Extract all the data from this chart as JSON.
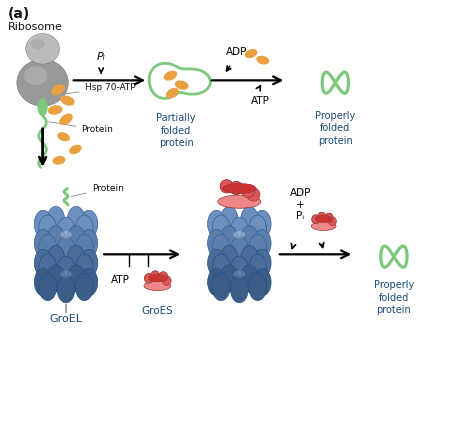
{
  "title": "(a)",
  "background_color": "#ffffff",
  "labels": {
    "ribosome": "Ribosome",
    "hsp70": "Hsp 70-ATP",
    "protein_top": "Protein",
    "protein_bottom": "Protein",
    "partially_folded": "Partially\nfolded\nprotein",
    "properly_folded_top": "Properly\nfolded\nprotein",
    "properly_folded_bottom": "Properly\nfolded\nprotein",
    "Pi_top": "Pᵢ",
    "adp_top1": "ADP",
    "atp_top": "ATP",
    "adp_bottom": "ADP\n+\nPᵢ",
    "GroEL": "GroEL",
    "GroES": "GroES",
    "atp_bottom": "ATP"
  },
  "colors": {
    "ribosome_gray": "#999999",
    "ribosome_light": "#bbbbbb",
    "ribosome_dark": "#777777",
    "green_protein": "#7dc87d",
    "green_light": "#a8d8a8",
    "orange_atp": "#e8a040",
    "blue_groel": "#6b8fbf",
    "blue_groel_mid": "#5a7eae",
    "blue_groel_dark": "#4a6d9a",
    "blue_groel_darkest": "#3a5d8a",
    "red_groes": "#cc3333",
    "red_groes_mid": "#dd5555",
    "red_groes_light": "#ee8888",
    "arrow_black": "#222222",
    "text_black": "#111111",
    "label_blue": "#1a4a7a"
  }
}
